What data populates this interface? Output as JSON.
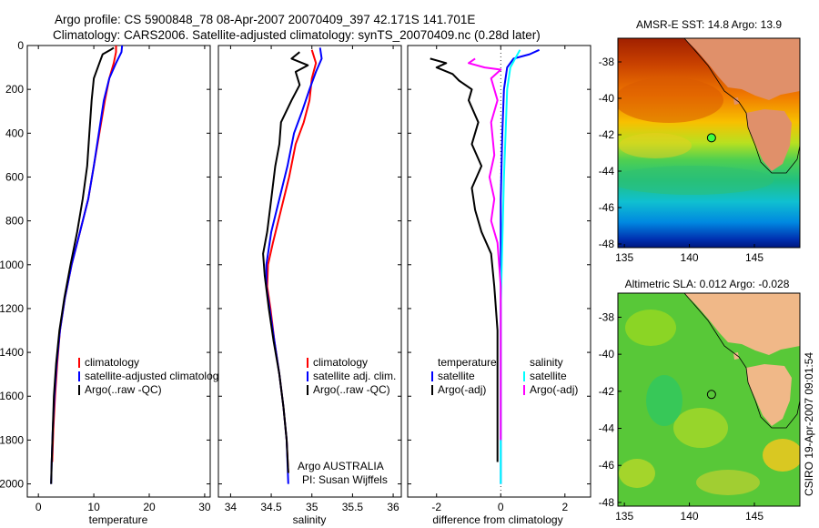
{
  "figure": {
    "title_line1": "Argo profile: CS 5900848_78 08-Apr-2007 20070409_397 42.171S 141.701E",
    "title_line2": "Climatology: CARS2006. Satellite-adjusted climatology: synTS_20070409.nc (0.28d later)",
    "side_stamp": "CSIRO 19-Apr-2007 09:01:54",
    "argo_label_line1": "Argo AUSTRALIA",
    "argo_label_line2": "PI: Susan Wijffels"
  },
  "colors": {
    "climatology": "#ff0000",
    "satellite": "#0000ff",
    "argo": "#000000",
    "sat_salinity": "#00ffff",
    "argo_salinity_diff": "#ff00ff"
  },
  "chart_data": [
    {
      "type": "line",
      "xlabel": "temperature",
      "ylabel": "",
      "xlim": [
        -2,
        31
      ],
      "ylim": [
        2060,
        0
      ],
      "xticks": [
        0,
        10,
        20,
        30
      ],
      "yticks": [
        0,
        200,
        400,
        600,
        800,
        1000,
        1200,
        1400,
        1600,
        1800,
        2000
      ],
      "legend": {
        "position": "lower-right",
        "entries": [
          "climatology",
          "satellite-adjusted climatology",
          "Argo(..raw -QC)"
        ]
      },
      "series": [
        {
          "name": "climatology",
          "color": "#ff0000",
          "points": [
            [
              14.0,
              0
            ],
            [
              14.0,
              30
            ],
            [
              13.6,
              80
            ],
            [
              12.8,
              150
            ],
            [
              12.0,
              250
            ],
            [
              11.0,
              400
            ],
            [
              10.0,
              550
            ],
            [
              9.0,
              700
            ],
            [
              7.5,
              850
            ],
            [
              6.0,
              1000
            ],
            [
              4.8,
              1150
            ],
            [
              3.9,
              1300
            ],
            [
              3.4,
              1450
            ],
            [
              3.0,
              1600
            ],
            [
              2.7,
              1750
            ],
            [
              2.5,
              1900
            ]
          ]
        },
        {
          "name": "satellite-adjusted climatology",
          "color": "#0000ff",
          "points": [
            [
              15.1,
              0
            ],
            [
              15.0,
              30
            ],
            [
              14.0,
              80
            ],
            [
              12.8,
              150
            ],
            [
              11.8,
              250
            ],
            [
              10.9,
              400
            ],
            [
              10.0,
              550
            ],
            [
              9.0,
              700
            ],
            [
              7.5,
              850
            ],
            [
              6.0,
              1000
            ],
            [
              4.8,
              1150
            ],
            [
              3.9,
              1300
            ],
            [
              3.3,
              1450
            ],
            [
              2.9,
              1600
            ],
            [
              2.6,
              1750
            ],
            [
              2.4,
              1900
            ],
            [
              2.3,
              2000
            ]
          ]
        },
        {
          "name": "Argo(..raw -QC)",
          "color": "#000000",
          "points": [
            [
              13.6,
              10
            ],
            [
              13.0,
              20
            ],
            [
              11.6,
              40
            ],
            [
              11.0,
              80
            ],
            [
              10.0,
              150
            ],
            [
              9.6,
              250
            ],
            [
              9.2,
              400
            ],
            [
              8.8,
              550
            ],
            [
              8.0,
              700
            ],
            [
              7.0,
              850
            ],
            [
              5.8,
              1000
            ],
            [
              4.7,
              1150
            ],
            [
              3.8,
              1300
            ],
            [
              3.2,
              1450
            ],
            [
              2.8,
              1600
            ],
            [
              2.6,
              1750
            ],
            [
              2.4,
              1900
            ],
            [
              2.3,
              2000
            ]
          ]
        }
      ]
    },
    {
      "type": "line",
      "xlabel": "salinity",
      "ylabel": "",
      "xlim": [
        33.85,
        36.1
      ],
      "ylim": [
        2060,
        0
      ],
      "xticks": [
        34,
        34.5,
        35,
        35.5,
        36
      ],
      "yticks": [
        0,
        200,
        400,
        600,
        800,
        1000,
        1200,
        1400,
        1600,
        1800,
        2000
      ],
      "legend": {
        "position": "lower-right",
        "entries": [
          "climatology",
          "satellite adj. clim.",
          "Argo(..raw -QC)"
        ]
      },
      "series": [
        {
          "name": "climatology",
          "color": "#ff0000",
          "points": [
            [
              35.0,
              20
            ],
            [
              35.05,
              80
            ],
            [
              35.0,
              150
            ],
            [
              34.97,
              250
            ],
            [
              34.9,
              350
            ],
            [
              34.8,
              450
            ],
            [
              34.72,
              600
            ],
            [
              34.62,
              750
            ],
            [
              34.52,
              900
            ],
            [
              34.46,
              1000
            ],
            [
              34.45,
              1100
            ],
            [
              34.49,
              1200
            ],
            [
              34.54,
              1350
            ],
            [
              34.6,
              1500
            ],
            [
              34.65,
              1650
            ],
            [
              34.69,
              1800
            ],
            [
              34.71,
              1950
            ]
          ]
        },
        {
          "name": "satellite adj. clim.",
          "color": "#0000ff",
          "points": [
            [
              35.1,
              10
            ],
            [
              35.12,
              60
            ],
            [
              35.05,
              120
            ],
            [
              34.97,
              200
            ],
            [
              34.88,
              300
            ],
            [
              34.78,
              400
            ],
            [
              34.7,
              550
            ],
            [
              34.6,
              700
            ],
            [
              34.5,
              850
            ],
            [
              34.44,
              1000
            ],
            [
              34.44,
              1100
            ],
            [
              34.48,
              1200
            ],
            [
              34.54,
              1350
            ],
            [
              34.6,
              1500
            ],
            [
              34.65,
              1650
            ],
            [
              34.69,
              1800
            ],
            [
              34.71,
              2000
            ]
          ]
        },
        {
          "name": "Argo(..raw -QC)",
          "color": "#000000",
          "points": [
            [
              34.85,
              30
            ],
            [
              34.75,
              60
            ],
            [
              34.95,
              90
            ],
            [
              34.8,
              120
            ],
            [
              34.85,
              180
            ],
            [
              34.75,
              250
            ],
            [
              34.62,
              350
            ],
            [
              34.6,
              450
            ],
            [
              34.55,
              550
            ],
            [
              34.5,
              700
            ],
            [
              34.45,
              850
            ],
            [
              34.4,
              950
            ],
            [
              34.42,
              1050
            ],
            [
              34.47,
              1200
            ],
            [
              34.53,
              1350
            ],
            [
              34.6,
              1500
            ],
            [
              34.65,
              1650
            ],
            [
              34.69,
              1800
            ],
            [
              34.71,
              1950
            ]
          ]
        }
      ]
    },
    {
      "type": "line",
      "xlabel": "difference from climatology",
      "ylabel": "",
      "xlim": [
        -2.9,
        2.8
      ],
      "ylim": [
        2060,
        0
      ],
      "xticks": [
        -2,
        0,
        2
      ],
      "yticks": [
        0,
        200,
        400,
        600,
        800,
        1000,
        1200,
        1400,
        1600,
        1800,
        2000
      ],
      "legend": {
        "position": "lower-right",
        "title_left": "temperature",
        "title_right": "salinity",
        "entries_left": [
          "satellite",
          "Argo(-adj)"
        ],
        "entries_right": [
          "satellite",
          "Argo(-adj)"
        ]
      },
      "series": [
        {
          "name": "temperature satellite",
          "color": "#0000ff",
          "points": [
            [
              1.2,
              20
            ],
            [
              0.9,
              40
            ],
            [
              0.4,
              60
            ],
            [
              0.2,
              100
            ],
            [
              0.1,
              200
            ],
            [
              0.05,
              400
            ],
            [
              0.0,
              700
            ],
            [
              0.0,
              1000
            ],
            [
              0.0,
              1400
            ],
            [
              0.0,
              1800
            ],
            [
              0.0,
              2000
            ]
          ]
        },
        {
          "name": "temperature Argo(-adj)",
          "color": "#000000",
          "points": [
            [
              -2.2,
              60
            ],
            [
              -1.7,
              80
            ],
            [
              -2.0,
              100
            ],
            [
              -1.5,
              130
            ],
            [
              -1.3,
              160
            ],
            [
              -0.9,
              200
            ],
            [
              -1.0,
              250
            ],
            [
              -0.7,
              350
            ],
            [
              -0.9,
              450
            ],
            [
              -0.6,
              550
            ],
            [
              -0.9,
              650
            ],
            [
              -0.8,
              750
            ],
            [
              -0.6,
              850
            ],
            [
              -0.3,
              950
            ],
            [
              -0.2,
              1100
            ],
            [
              -0.1,
              1300
            ],
            [
              -0.1,
              1500
            ],
            [
              -0.1,
              1700
            ],
            [
              -0.1,
              1900
            ]
          ]
        },
        {
          "name": "salinity satellite",
          "color": "#00ffff",
          "points": [
            [
              0.6,
              20
            ],
            [
              0.3,
              100
            ],
            [
              0.2,
              200
            ],
            [
              0.15,
              400
            ],
            [
              0.1,
              600
            ],
            [
              0.05,
              900
            ],
            [
              0.0,
              1200
            ],
            [
              0.0,
              1600
            ],
            [
              0.0,
              2000
            ]
          ]
        },
        {
          "name": "salinity Argo(-adj)",
          "color": "#ff00ff",
          "points": [
            [
              -0.8,
              60
            ],
            [
              -1.0,
              80
            ],
            [
              -0.5,
              100
            ],
            [
              0.0,
              110
            ],
            [
              -0.3,
              150
            ],
            [
              -0.1,
              250
            ],
            [
              -0.3,
              350
            ],
            [
              -0.2,
              500
            ],
            [
              -0.35,
              600
            ],
            [
              -0.2,
              700
            ],
            [
              -0.3,
              800
            ],
            [
              -0.1,
              900
            ],
            [
              0.0,
              1100
            ],
            [
              0.0,
              1400
            ],
            [
              0.0,
              1800
            ]
          ]
        }
      ]
    },
    {
      "type": "heatmap",
      "title": "AMSR-E SST: 14.8 Argo: 13.9",
      "xlim": [
        134.5,
        148.5
      ],
      "ylim": [
        -48.2,
        -36.7
      ],
      "xticks": [
        135,
        140,
        145
      ],
      "yticks": [
        -38,
        -40,
        -42,
        -44,
        -46,
        -48
      ],
      "argo_position": [
        141.7,
        -42.17
      ]
    },
    {
      "type": "heatmap",
      "title": "Altimetric SLA: 0.012 Argo: -0.028",
      "xlim": [
        134.5,
        148.5
      ],
      "ylim": [
        -48.2,
        -36.7
      ],
      "xticks": [
        135,
        140,
        145
      ],
      "yticks": [
        -38,
        -40,
        -42,
        -44,
        -46,
        -48
      ],
      "argo_position": [
        141.7,
        -42.17
      ]
    }
  ]
}
